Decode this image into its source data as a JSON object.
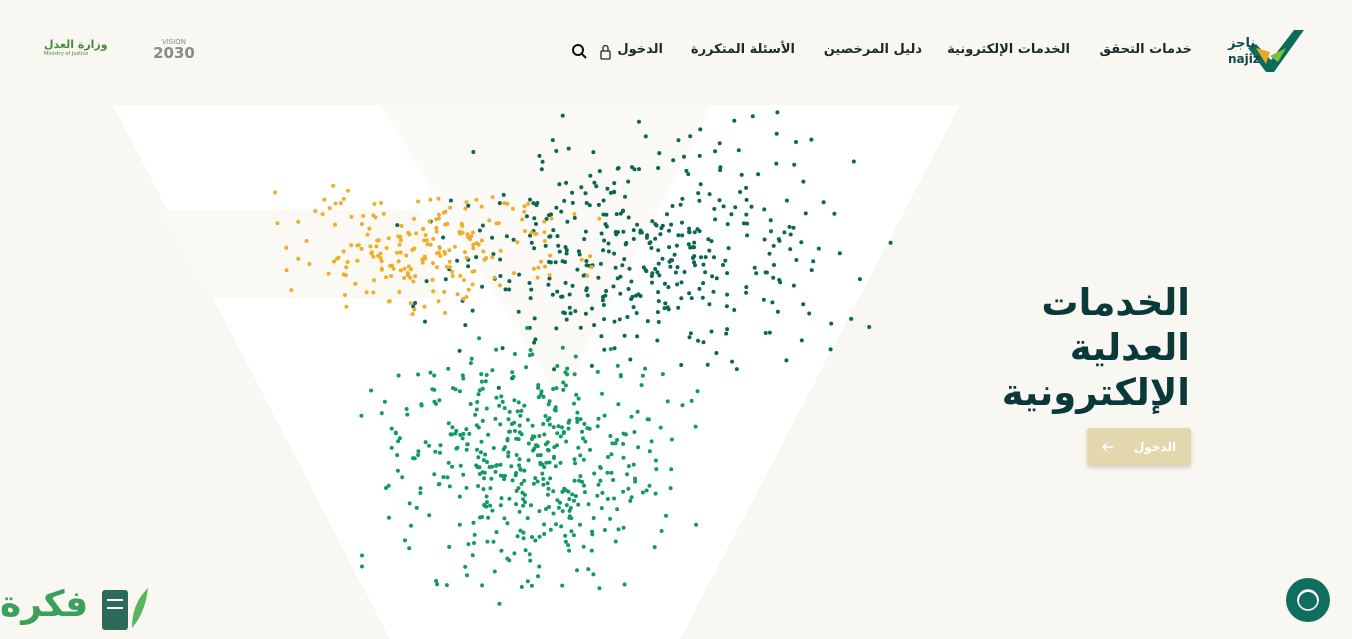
{
  "header": {
    "logo": {
      "arabic": "ناجز",
      "latin": "najiz"
    },
    "nav": [
      "خدمات التحقق",
      "الخدمات الإلكترونية",
      "دليل المرخصين",
      "الأسئلة المتكررة",
      "الدخول"
    ],
    "vision": {
      "label": "VISION",
      "year": "2030"
    },
    "ministry": {
      "arabic": "وزارة العدل",
      "english": "Ministry of Justice"
    }
  },
  "hero": {
    "title": [
      "الخدمات",
      "العدلية",
      "الإلكترونية"
    ],
    "button": "الدخول"
  },
  "watermark": "فكرة"
}
